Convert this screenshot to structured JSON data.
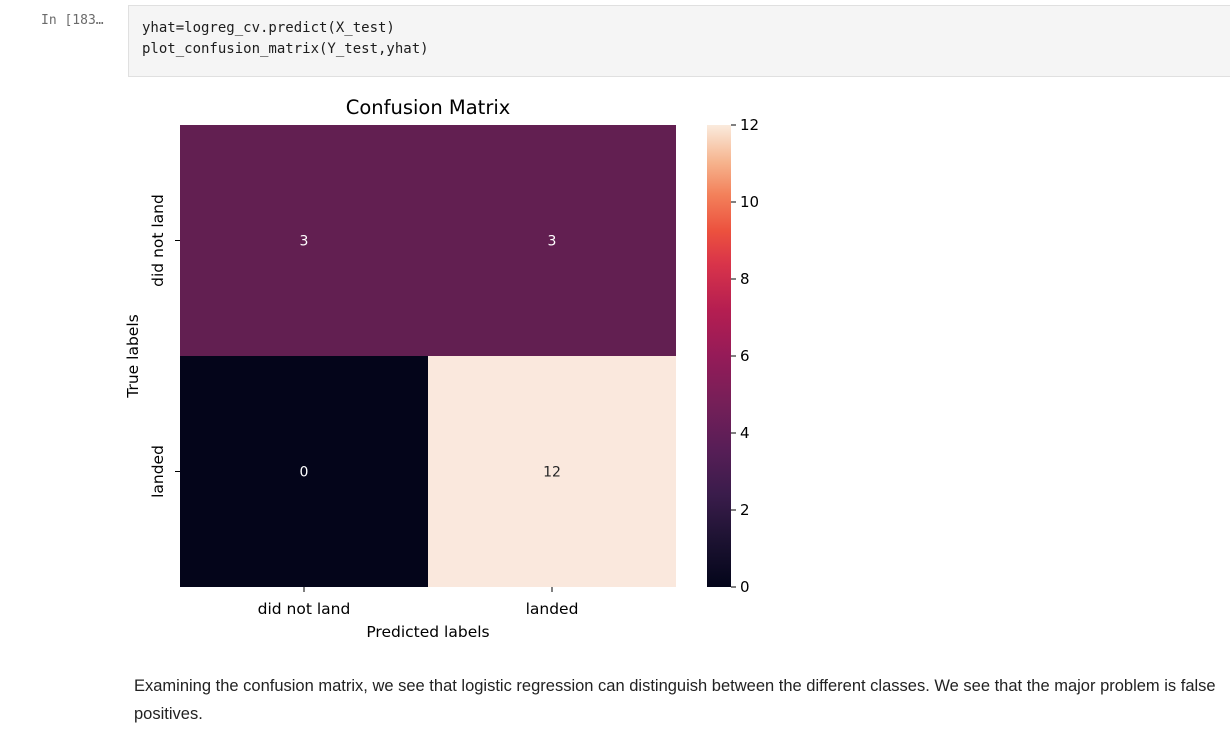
{
  "cell": {
    "prompt": "In [183…",
    "code_lines": [
      "yhat=logreg_cv.predict(X_test)",
      "plot_confusion_matrix(Y_test,yhat)"
    ]
  },
  "chart_data": {
    "type": "heatmap",
    "title": "Confusion Matrix",
    "xlabel": "Predicted labels",
    "ylabel": "True labels",
    "x_categories": [
      "did not land",
      "landed"
    ],
    "y_categories": [
      "did not land",
      "landed"
    ],
    "values": [
      [
        3,
        3
      ],
      [
        0,
        12
      ]
    ],
    "colormap": "rocket",
    "colorbar": {
      "range": [
        0,
        12
      ],
      "ticks": [
        0,
        2,
        4,
        6,
        8,
        10,
        12
      ]
    },
    "cell_colors": {
      "3": "#621f51",
      "0": "#04051a",
      "12": "#fae8dd"
    }
  },
  "markdown": {
    "text": "Examining the confusion matrix, we see that logistic regression can distinguish between the different classes. We see that the major problem is false positives."
  }
}
